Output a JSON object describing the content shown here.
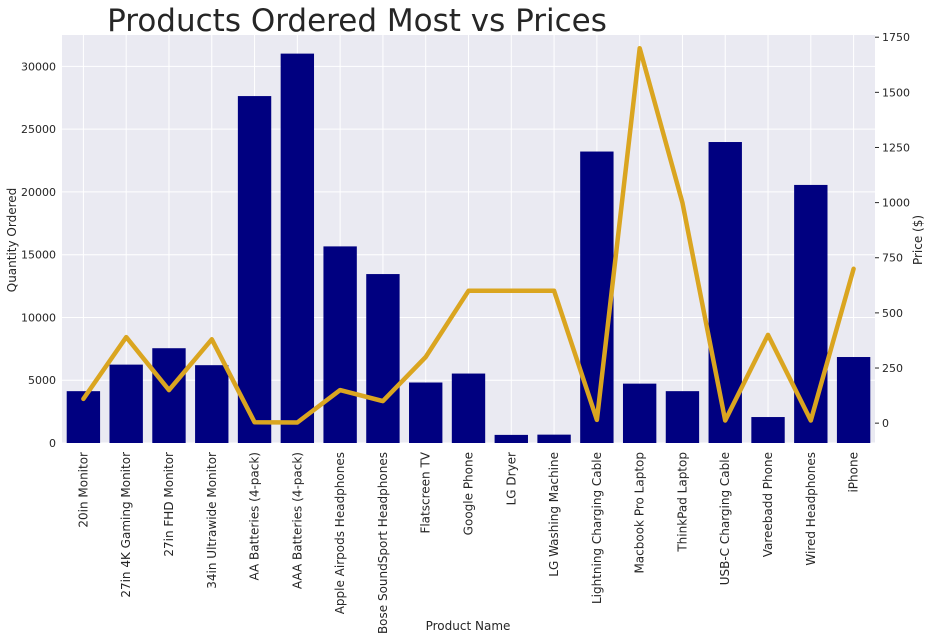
{
  "chart_data": {
    "type": "bar",
    "title": "Products Ordered Most vs Prices",
    "xlabel": "Product Name",
    "ylabel": "Quantity Ordered",
    "y2label": "Price ($)",
    "ylim": [
      0,
      32500
    ],
    "y2lim": [
      -90,
      1760
    ],
    "yticks": [
      0,
      5000,
      10000,
      15000,
      20000,
      25000,
      30000
    ],
    "y2ticks": [
      0,
      250,
      500,
      750,
      1000,
      1250,
      1500,
      1750
    ],
    "grid": true,
    "categories": [
      "20in Monitor",
      "27in 4K Gaming Monitor",
      "27in FHD Monitor",
      "34in Ultrawide Monitor",
      "AA Batteries (4-pack)",
      "AAA Batteries (4-pack)",
      "Apple Airpods Headphones",
      "Bose SoundSport Headphones",
      "Flatscreen TV",
      "Google Phone",
      "LG Dryer",
      "LG Washing Machine",
      "Lightning Charging Cable",
      "Macbook Pro Laptop",
      "ThinkPad Laptop",
      "USB-C Charging Cable",
      "Vareebadd Phone",
      "Wired Headphones",
      "iPhone"
    ],
    "series": [
      {
        "kind": "bar",
        "axis": "left",
        "color": "#000080",
        "values": [
          4129,
          6244,
          7550,
          6199,
          27635,
          31017,
          15661,
          13457,
          4819,
          5532,
          646,
          666,
          23217,
          4728,
          4130,
          23975,
          2068,
          20557,
          6849
        ]
      },
      {
        "kind": "line",
        "axis": "right",
        "color": "#DAA520",
        "values": [
          109.99,
          389.99,
          149.99,
          379.99,
          3.84,
          2.99,
          150,
          99.99,
          300,
          600,
          600,
          600,
          14.95,
          1700,
          999.99,
          11.95,
          400,
          11.99,
          700
        ]
      }
    ]
  },
  "colors": {
    "plot_background": "#EAEAF2",
    "grid": "#FFFFFF",
    "bar": "#000080",
    "line": "#DAA520"
  }
}
